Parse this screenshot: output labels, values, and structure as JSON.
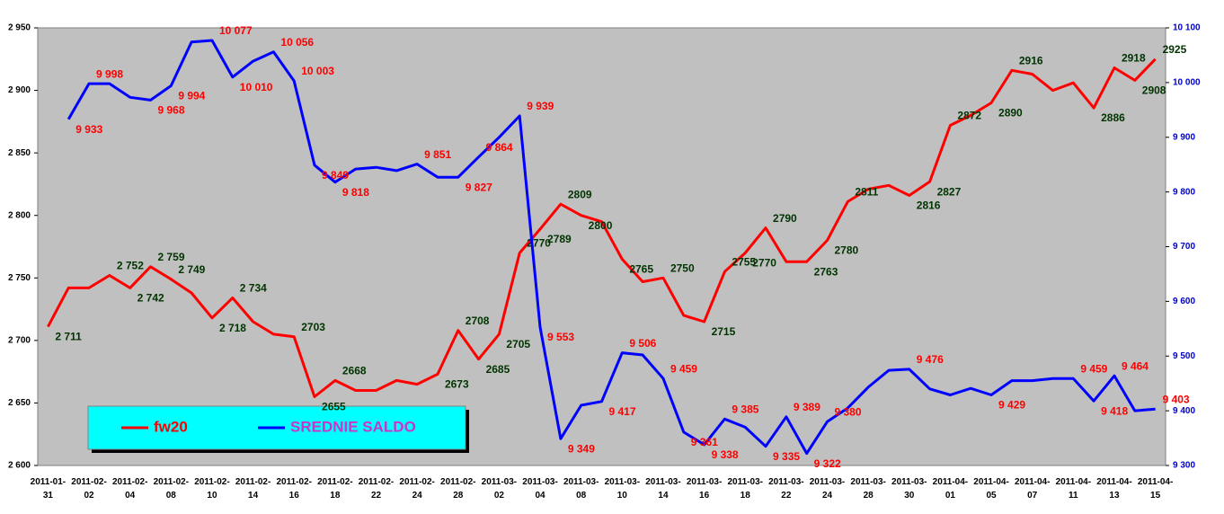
{
  "chart_data": {
    "type": "line",
    "categories": [
      "2011-01-31",
      null,
      "2011-02-02",
      null,
      "2011-02-04",
      null,
      "2011-02-08",
      null,
      "2011-02-10",
      null,
      "2011-02-14",
      null,
      "2011-02-16",
      null,
      "2011-02-18",
      null,
      "2011-02-22",
      null,
      "2011-02-24",
      null,
      "2011-02-28",
      null,
      "2011-03-02",
      null,
      "2011-03-04",
      null,
      "2011-03-08",
      null,
      "2011-03-10",
      null,
      "2011-03-14",
      null,
      "2011-03-16",
      null,
      "2011-03-18",
      null,
      "2011-03-22",
      null,
      "2011-03-24",
      null,
      "2011-03-28",
      null,
      "2011-03-30",
      null,
      "2011-04-01",
      null,
      "2011-04-05",
      null,
      "2011-04-07",
      null,
      "2011-04-11",
      null,
      "2011-04-13",
      null,
      "2011-04-15"
    ],
    "series": [
      {
        "name": "fw20",
        "color": "#ff0000",
        "label_color": "#003300",
        "values": [
          2711,
          2742,
          2742,
          2752,
          2742,
          2759,
          2749,
          2738,
          2718,
          2734,
          2715,
          2705,
          2703,
          2655,
          2668,
          2660,
          2660,
          2668,
          2665,
          2673,
          2708,
          2685,
          2705,
          2770,
          2789,
          2809,
          2800,
          2795,
          2765,
          2747,
          2750,
          2720,
          2715,
          2755,
          2770,
          2790,
          2763,
          2763,
          2780,
          2811,
          2821,
          2824,
          2816,
          2827,
          2872,
          2880,
          2890,
          2916,
          2913,
          2900,
          2906,
          2886,
          2918,
          2908,
          2925
        ],
        "value_labels": [
          "2 711",
          null,
          null,
          "2 752",
          "2 742",
          "2 759",
          "2 749",
          null,
          "2 718",
          "2 734",
          null,
          null,
          "2703",
          "2655",
          "2668",
          null,
          null,
          null,
          null,
          "2673",
          "2708",
          "2685",
          "2705",
          "2770",
          "2789",
          "2809",
          "2800",
          null,
          "2765",
          null,
          "2750",
          null,
          "2715",
          "2755",
          "2770",
          "2790",
          null,
          "2763",
          "2780",
          "2811",
          null,
          null,
          "2816",
          "2827",
          "2872",
          null,
          "2890",
          "2916",
          null,
          null,
          null,
          "2886",
          "2918",
          "2908",
          "2925"
        ]
      },
      {
        "name": "SREDNIE SALDO",
        "color": "#0000ff",
        "label_color": "#ff0000",
        "axis": "y2",
        "values": [
          null,
          9933,
          9998,
          9998,
          9973,
          9968,
          9994,
          10074,
          10077,
          10010,
          10039,
          10056,
          10003,
          9849,
          9818,
          9842,
          9845,
          9839,
          9851,
          9827,
          9827,
          9864,
          9900,
          9939,
          9553,
          9349,
          9410,
          9417,
          9506,
          9502,
          9459,
          9361,
          9338,
          9385,
          9370,
          9335,
          9389,
          9322,
          9380,
          9405,
          9443,
          9474,
          9476,
          9440,
          9429,
          9441,
          9429,
          9455,
          9455,
          9459,
          9459,
          9418,
          9464,
          9400,
          9403
        ],
        "value_labels": [
          null,
          "9 933",
          "9 998",
          null,
          null,
          "9 968",
          "9 994",
          null,
          "10 077",
          "10 010",
          null,
          "10 056",
          "10 003",
          "9 849",
          "9 818",
          null,
          null,
          null,
          "9 851",
          null,
          "9 827",
          "9 864",
          null,
          "9 939",
          "9 553",
          "9 349",
          null,
          "9 417",
          "9 506",
          null,
          "9 459",
          "9 361",
          "9 338",
          "9 385",
          null,
          "9 335",
          "9 389",
          "9 322",
          "9 380",
          null,
          null,
          null,
          "9 476",
          null,
          null,
          null,
          "9 429",
          null,
          null,
          null,
          "9 459",
          "9 418",
          "9 464",
          null,
          "9 403"
        ]
      }
    ],
    "ylim": [
      2600,
      2950
    ],
    "yticks": [
      {
        "value": 2600,
        "label": "2 600"
      },
      {
        "value": 2650,
        "label": "2 650"
      },
      {
        "value": 2700,
        "label": "2 700"
      },
      {
        "value": 2750,
        "label": "2 750"
      },
      {
        "value": 2800,
        "label": "2 800"
      },
      {
        "value": 2850,
        "label": "2 850"
      },
      {
        "value": 2900,
        "label": "2 900"
      },
      {
        "value": 2950,
        "label": "2 950"
      }
    ],
    "y2lim": [
      9300,
      10100
    ],
    "y2ticks": [
      {
        "value": 9300,
        "label": "9 300"
      },
      {
        "value": 9400,
        "label": "9 400"
      },
      {
        "value": 9500,
        "label": "9 500"
      },
      {
        "value": 9600,
        "label": "9 600"
      },
      {
        "value": 9700,
        "label": "9 700"
      },
      {
        "value": 9800,
        "label": "9 800"
      },
      {
        "value": 9900,
        "label": "9 900"
      },
      {
        "value": 10000,
        "label": "10 000"
      },
      {
        "value": 10100,
        "label": "10 100"
      }
    ],
    "grid": false
  }
}
